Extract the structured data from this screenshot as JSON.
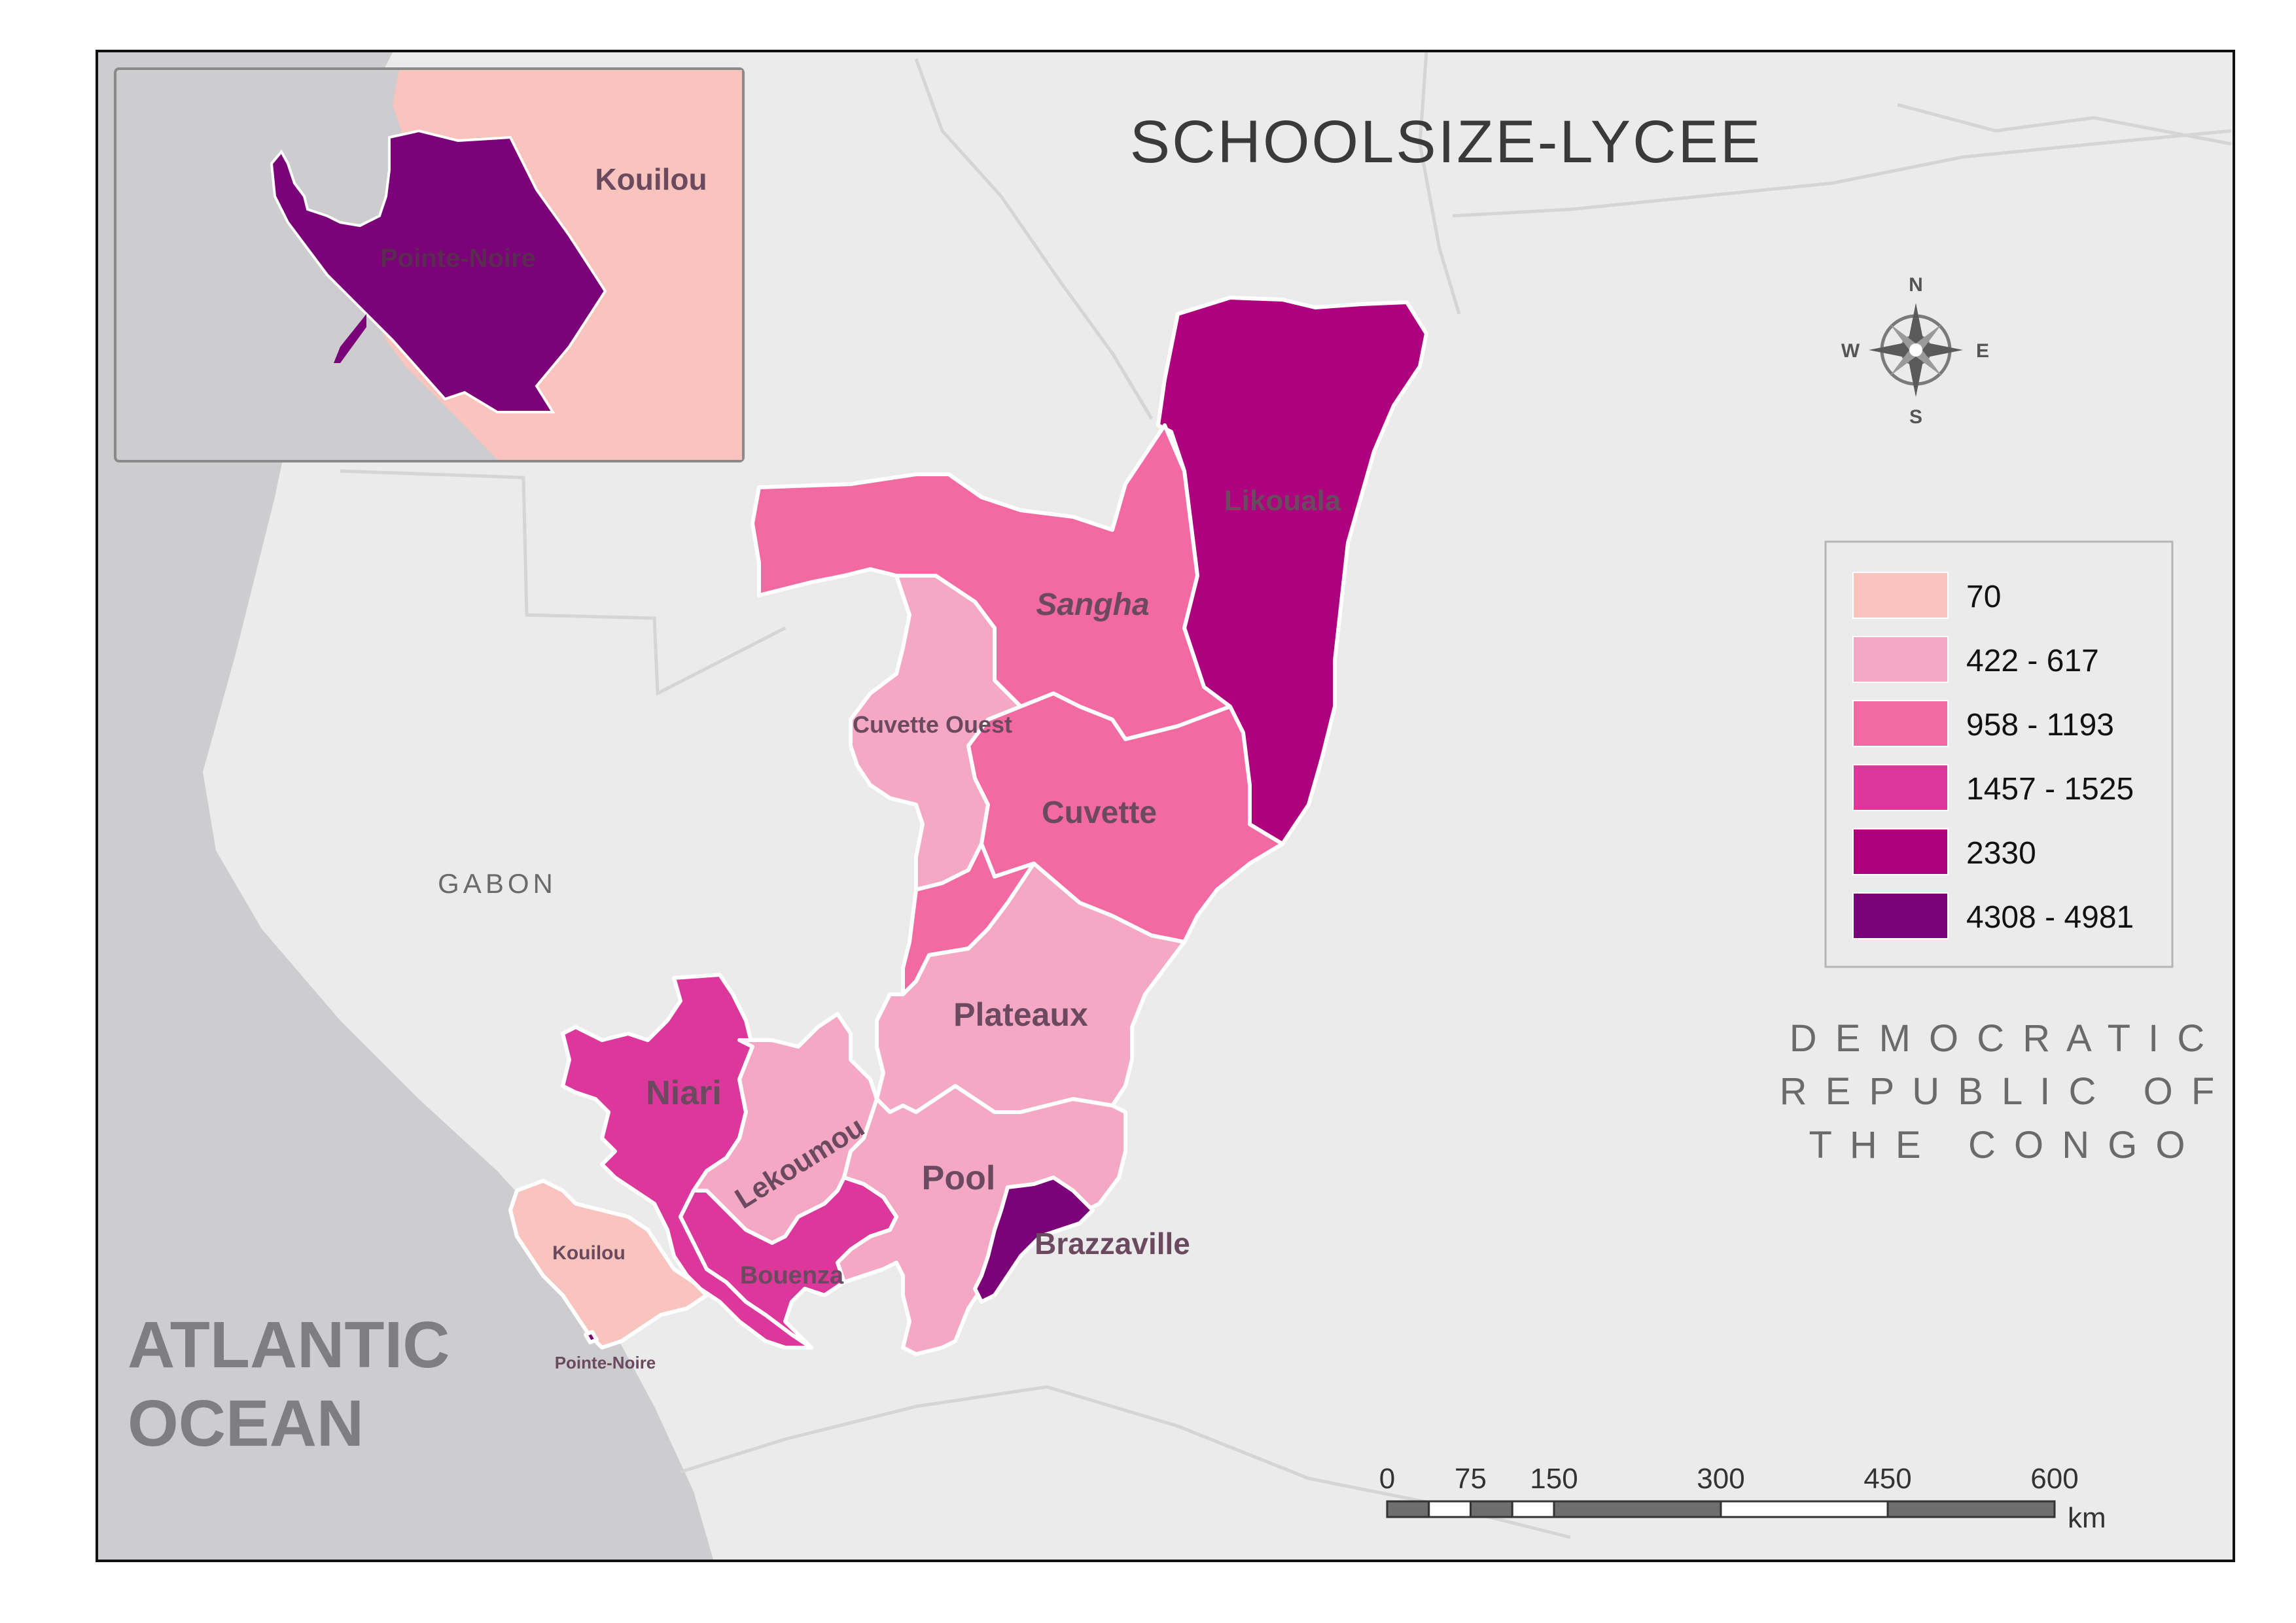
{
  "title": "SchoolSize-Lycee",
  "title_caps": "SCHOOLSIZE-LYCEE",
  "colors": {
    "background_land": "#ebebeb",
    "ocean": "#cdcdcf",
    "border_gray": "#d8d8d8",
    "label_gray": "#6a6a6a",
    "class_70": "#f9c4bd",
    "class_422_617": "#f5a8c4",
    "class_958_1193": "#f26aa1",
    "class_1457_1525": "#dc379a",
    "class_2330": "#ad017e",
    "class_4308_4981": "#7a0177"
  },
  "labels": {
    "country_gabon": "GABON",
    "drc_line1": "D E M O C R A T I C",
    "drc_line2": "R E P U B L I C   O F",
    "drc_line3": "T H E   C O N G O",
    "ocean_line1": "ATLANTIC",
    "ocean_line2": "OCEAN"
  },
  "regions": [
    {
      "name": "Likouala",
      "class": "2330"
    },
    {
      "name": "Sangha",
      "class": "958 - 1193"
    },
    {
      "name": "Cuvette Ouest",
      "class": "422 - 617"
    },
    {
      "name": "Cuvette",
      "class": "958 - 1193"
    },
    {
      "name": "Plateaux",
      "class": "422 - 617"
    },
    {
      "name": "Niari",
      "class": "1457 - 1525"
    },
    {
      "name": "Lekoumou",
      "class": "422 - 617"
    },
    {
      "name": "Pool",
      "class": "422 - 617"
    },
    {
      "name": "Bouenza",
      "class": "1457 - 1525"
    },
    {
      "name": "Brazzaville",
      "class": "4308 - 4981"
    },
    {
      "name": "Kouilou",
      "class": "70"
    },
    {
      "name": "Pointe-Noire",
      "class": "4308 - 4981"
    }
  ],
  "inset": {
    "kouilou": "Kouilou",
    "pointe_noire": "Pointe-Noire"
  },
  "legend": {
    "items": [
      {
        "label": "70",
        "color": "#f9c4bd"
      },
      {
        "label": "422 - 617",
        "color": "#f5a8c4"
      },
      {
        "label": "958 - 1193",
        "color": "#f26aa1"
      },
      {
        "label": "1457 - 1525",
        "color": "#dc379a"
      },
      {
        "label": "2330",
        "color": "#ad017e"
      },
      {
        "label": "4308 - 4981",
        "color": "#7a0177"
      }
    ]
  },
  "compass": {
    "n": "N",
    "s": "S",
    "e": "E",
    "w": "W"
  },
  "scale_bar": {
    "ticks": [
      "0",
      "75",
      "150",
      "300",
      "450",
      "600"
    ],
    "unit": "km"
  }
}
